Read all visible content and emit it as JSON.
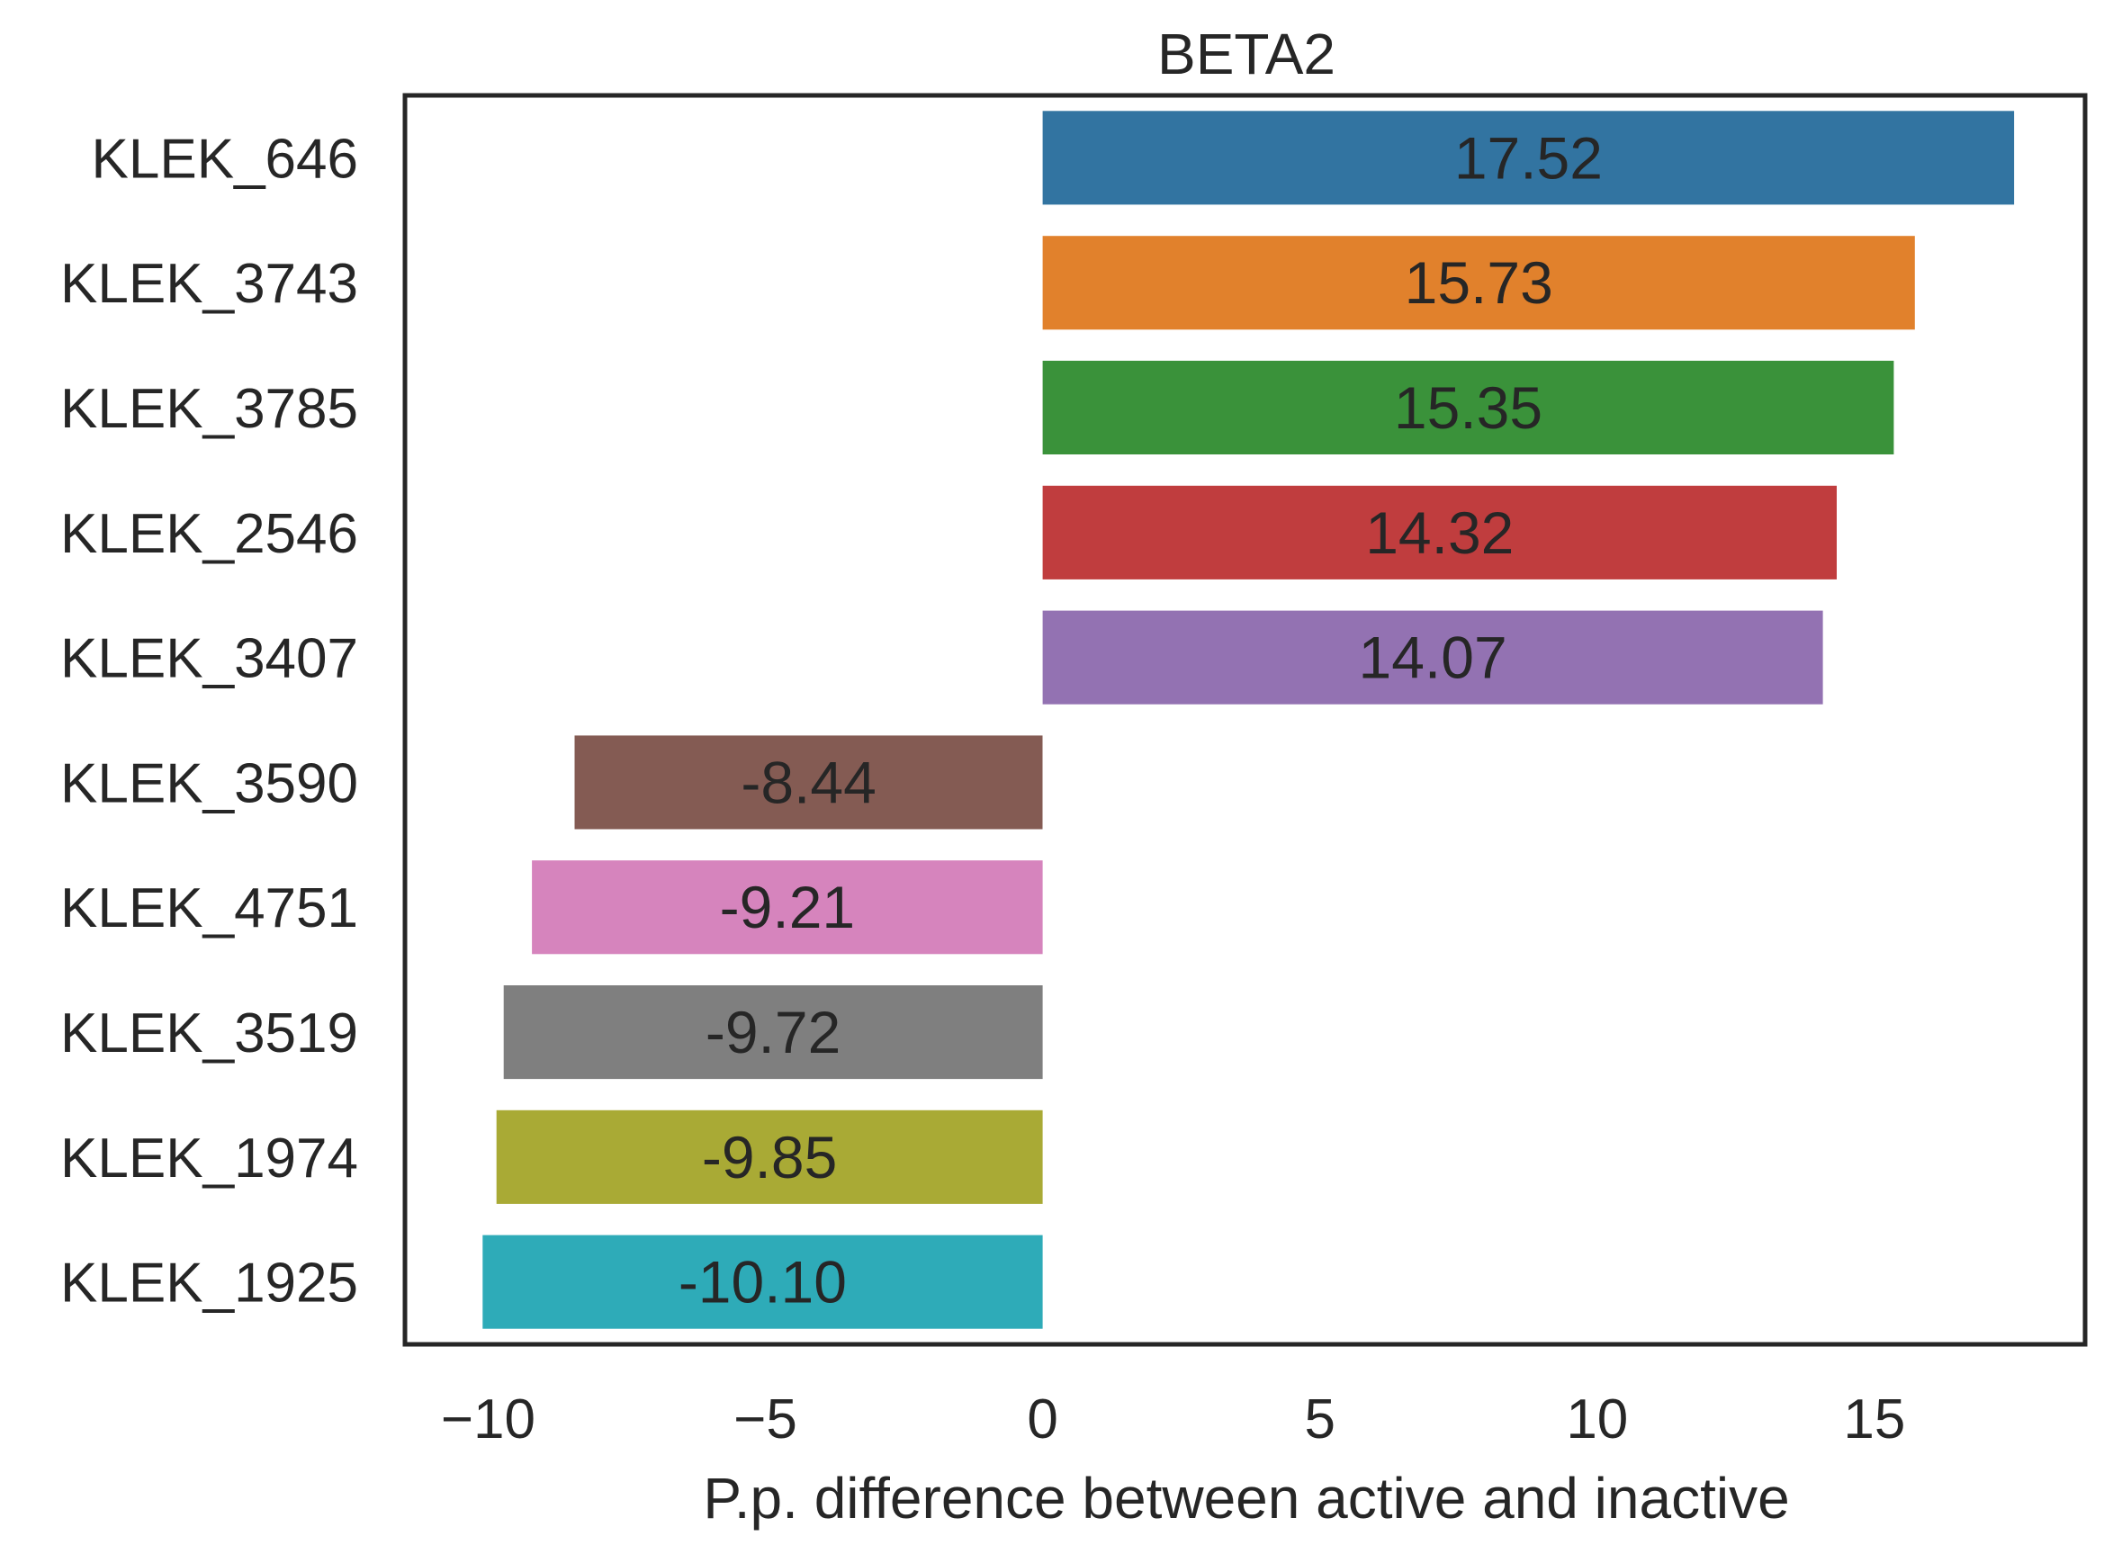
{
  "chart_data": {
    "type": "bar",
    "orientation": "horizontal",
    "title": "BETA2",
    "xlabel": "P.p. difference between active and inactive",
    "ylabel": "",
    "xlim": [
      -11.5,
      18.8
    ],
    "xticks": [
      -10,
      -5,
      0,
      5,
      10,
      15
    ],
    "xtick_labels": [
      "−10",
      "−5",
      "0",
      "5",
      "10",
      "15"
    ],
    "grid": false,
    "categories": [
      "KLEK_646",
      "KLEK_3743",
      "KLEK_3785",
      "KLEK_2546",
      "KLEK_3407",
      "KLEK_3590",
      "KLEK_4751",
      "KLEK_3519",
      "KLEK_1974",
      "KLEK_1925"
    ],
    "values": [
      17.52,
      15.73,
      15.35,
      14.32,
      14.07,
      -8.44,
      -9.21,
      -9.72,
      -9.85,
      -10.1
    ],
    "value_labels": [
      "17.52",
      "15.73",
      "15.35",
      "14.32",
      "14.07",
      "-8.44",
      "-9.21",
      "-9.72",
      "-9.85",
      "-10.10"
    ],
    "colors": [
      "#3274a1",
      "#e1812c",
      "#3a923a",
      "#c03d3e",
      "#9372b2",
      "#845b53",
      "#d684bd",
      "#7f7f7f",
      "#a9aa35",
      "#2eabb8"
    ]
  }
}
